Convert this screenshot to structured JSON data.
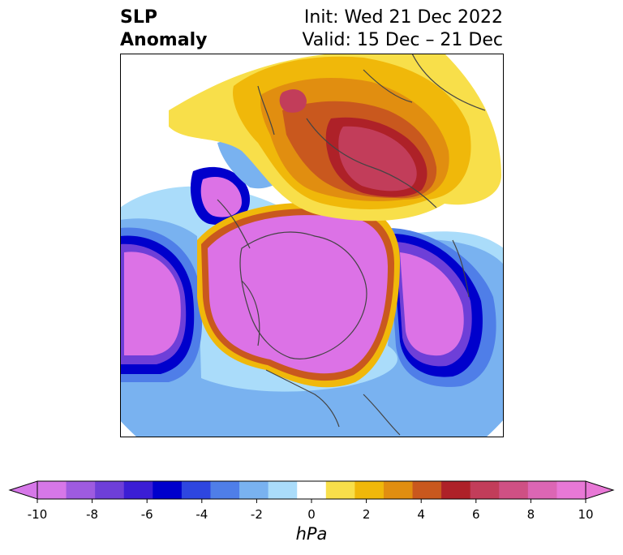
{
  "title": {
    "left_line1": "SLP",
    "left_line2": "Anomaly",
    "right_line1": "Init: Wed 21 Dec 2022",
    "right_line2": "Valid: 15 Dec – 21 Dec"
  },
  "colorbar": {
    "units": "hPa",
    "ticks": [
      "-10",
      "-8",
      "-6",
      "-4",
      "-2",
      "0",
      "2",
      "4",
      "6",
      "8",
      "10"
    ],
    "colors": [
      "#d677e8",
      "#9e5be0",
      "#6e3fd8",
      "#3b1ed5",
      "#0000cc",
      "#2e46e0",
      "#4f7ee8",
      "#79b2f0",
      "#aadcfa",
      "#ffffff",
      "#f8df4a",
      "#f0b80a",
      "#e18e10",
      "#c9581e",
      "#ae2128",
      "#c23d5a",
      "#cf5084",
      "#dc66b4",
      "#e878d6"
    ],
    "min_color": "#d677e8",
    "max_color": "#e878d6"
  },
  "map": {
    "projection": "north polar stereographic",
    "features": {
      "strong_negative_center_color": "#dc72e6",
      "strong_positive_center_color": "#c13052",
      "boundary_color": "#444444"
    }
  }
}
